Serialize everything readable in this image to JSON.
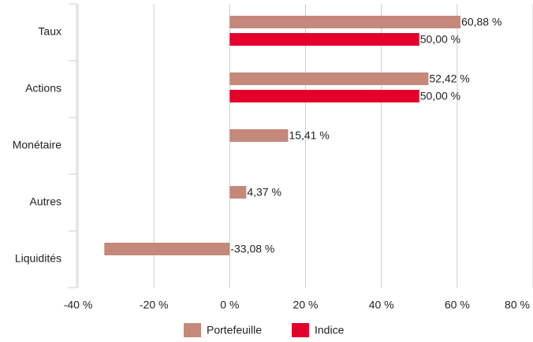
{
  "chart_data": {
    "type": "barh",
    "categories": [
      "Taux",
      "Actions",
      "Monétaire",
      "Autres",
      "Liquidités"
    ],
    "series": [
      {
        "name": "Portefeuille",
        "color": "#c4897a",
        "values": [
          60.88,
          52.42,
          15.41,
          4.37,
          -33.08
        ],
        "value_labels": [
          "60,88 %",
          "52,42 %",
          "15,41 %",
          "4,37 %",
          "-33,08 %"
        ]
      },
      {
        "name": "Indice",
        "color": "#e4002b",
        "values": [
          50,
          50,
          null,
          null,
          null
        ],
        "value_labels": [
          "50,00 %",
          "50,00 %",
          null,
          null,
          null
        ]
      }
    ],
    "xlim": [
      -40,
      80
    ],
    "xticks": [
      {
        "value": -40,
        "label": "-40 %"
      },
      {
        "value": -20,
        "label": "-20 %"
      },
      {
        "value": 0,
        "label": "0 %"
      },
      {
        "value": 20,
        "label": "20 %"
      },
      {
        "value": 40,
        "label": "40 %"
      },
      {
        "value": 60,
        "label": "60 %"
      },
      {
        "value": 80,
        "label": "80 %"
      }
    ],
    "grid": true,
    "legend": "bottom"
  }
}
